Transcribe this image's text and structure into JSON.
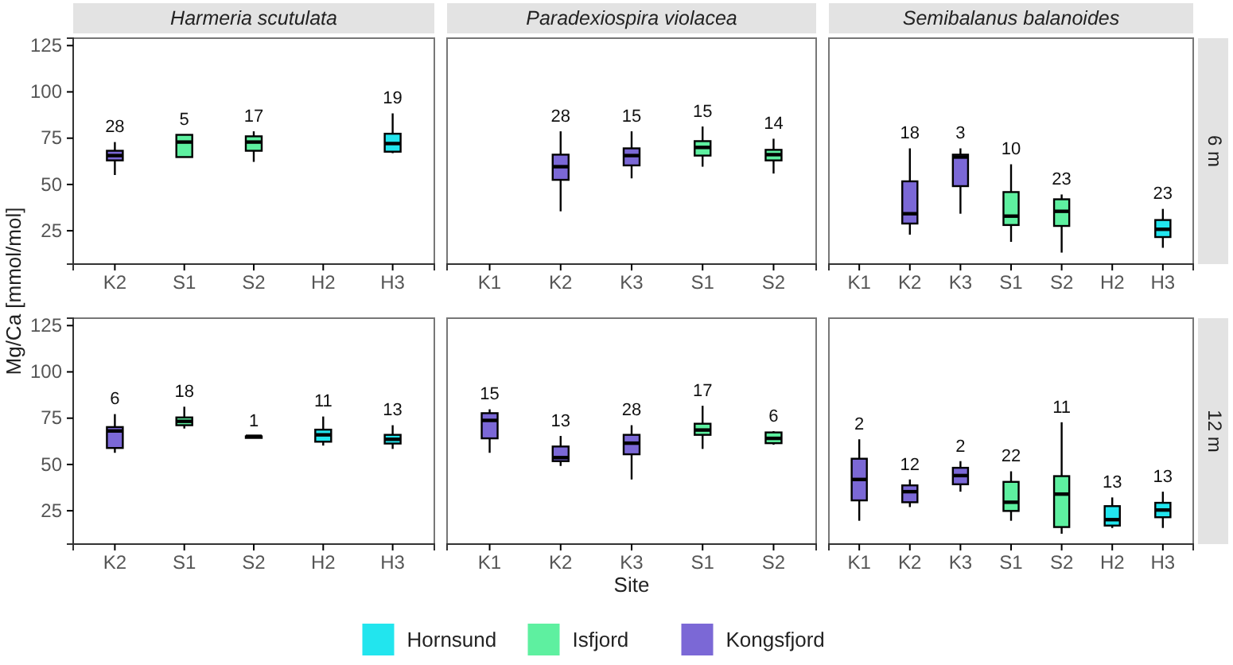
{
  "chart_data": [
    {
      "type": "box",
      "title": "Harmeria scutulata",
      "ylabel": "Mg/Ca [mmol/mol]",
      "categories": [
        "K2",
        "S1",
        "S2",
        "H2",
        "H3"
      ],
      "ylim": [
        7,
        129
      ],
      "yticks": [
        25,
        50,
        75,
        100,
        125
      ],
      "grid": false,
      "legend": "bottom",
      "series": [
        {
          "name": "Hornsund",
          "color": "#22e5ee",
          "boxes": [
            null,
            null,
            null,
            null,
            {
              "low": 66.9,
              "q1": 67.7,
              "median": 72.1,
              "q3": 77.4,
              "high": 88.4
            }
          ]
        },
        {
          "name": "Isfjord",
          "color": "#5ef0a0",
          "boxes": [
            null,
            {
              "low": 64.8,
              "q1": 64.8,
              "median": 72.9,
              "q3": 76.8,
              "high": 76.8
            },
            {
              "low": 62.2,
              "q1": 68.2,
              "median": 72.9,
              "q3": 76,
              "high": 78.7
            },
            null,
            null
          ]
        },
        {
          "name": "Kongsfjord",
          "color": "#7b68d6",
          "boxes": [
            {
              "low": 55.1,
              "q1": 63,
              "median": 65.6,
              "q3": 68.2,
              "high": 72.9
            },
            null,
            null,
            null,
            null
          ]
        }
      ],
      "annotations": [
        "28",
        "5",
        "17",
        "19"
      ]
    },
    {
      "type": "box",
      "title": "Paradexiospira violacea",
      "categories": [
        "K1",
        "K2",
        "K3",
        "S1",
        "S2"
      ],
      "ylim": [
        7,
        129
      ],
      "tick_labels": "x",
      "grid": false,
      "series": [
        {
          "color": "#5ef0a0",
          "boxes": [
            null,
            null,
            null,
            {
              "low": 59.6,
              "q1": 65.6,
              "median": 70,
              "q3": 73.4,
              "high": 81.3
            },
            {
              "low": 55.9,
              "q1": 63,
              "median": 66.1,
              "q3": 68.7,
              "high": 74.7
            }
          ]
        },
        {
          "color": "#7b68d6",
          "boxes": [
            null,
            {
              "low": 35.5,
              "q1": 52.5,
              "median": 59.6,
              "q3": 66.1,
              "high": 78.7
            },
            {
              "low": 53.3,
              "q1": 60.3,
              "median": 65.6,
              "q3": 69.5,
              "high": 78.7
            },
            null,
            null
          ]
        }
      ],
      "annotations": [
        "28",
        "15",
        "15",
        "14"
      ]
    },
    {
      "type": "box",
      "title": "Semibalanus balanoides",
      "y2label": "6 m",
      "categories": [
        "K1",
        "K2",
        "K3",
        "S1",
        "S2",
        "H2",
        "H3"
      ],
      "ylim": [
        7,
        129
      ],
      "tick_labels": "x",
      "grid": false,
      "series": [
        {
          "color": "#22e5ee",
          "boxes": [
            null,
            null,
            null,
            null,
            null,
            null,
            {
              "low": 15.8,
              "q1": 21.6,
              "median": 25.8,
              "q3": 30.8,
              "high": 36.8
            }
          ]
        },
        {
          "color": "#5ef0a0",
          "boxes": [
            null,
            null,
            null,
            {
              "low": 19,
              "q1": 28.1,
              "median": 32.9,
              "q3": 45.9,
              "high": 60.9
            },
            {
              "low": 13.2,
              "q1": 27.6,
              "median": 35.5,
              "q3": 42,
              "high": 44.6
            },
            null,
            null
          ]
        },
        {
          "color": "#7b68d6",
          "boxes": [
            null,
            {
              "low": 22.9,
              "q1": 28.9,
              "median": 34.2,
              "q3": 51.7,
              "high": 69.5
            },
            {
              "low": 34.2,
              "q1": 49.1,
              "median": 64.8,
              "q3": 66.1,
              "high": 69.5
            },
            null,
            null,
            null,
            null
          ]
        }
      ],
      "annotations": [
        "18",
        "3",
        "10",
        "23",
        "23"
      ]
    },
    {
      "type": "box",
      "categories": [
        "K2",
        "S1",
        "S2",
        "H2",
        "H3"
      ],
      "ylim": [
        7,
        129
      ],
      "yticks": [
        25,
        50,
        75,
        100,
        125
      ],
      "grid": false,
      "series": [
        {
          "color": "#22e5ee",
          "boxes": [
            null,
            null,
            null,
            {
              "low": 60.2,
              "q1": 62.3,
              "median": 66,
              "q3": 68.8,
              "high": 75.9
            },
            {
              "low": 58.4,
              "q1": 61.3,
              "median": 63.6,
              "q3": 66,
              "high": 71.2
            }
          ]
        },
        {
          "color": "#5ef0a0",
          "boxes": [
            null,
            {
              "low": 69.4,
              "q1": 71.2,
              "median": 73.3,
              "q3": 75.4,
              "high": 81.2
            },
            {
              "low": 65.2,
              "q1": 65.2,
              "median": 65.2,
              "q3": 65.2,
              "high": 65.2
            },
            null,
            null
          ]
        },
        {
          "color": "#7b68d6",
          "boxes": [
            {
              "low": 56.3,
              "q1": 58.9,
              "median": 68.1,
              "q3": 70.2,
              "high": 77.2
            },
            null,
            null,
            null,
            null
          ]
        }
      ],
      "annotations": [
        "6",
        "18",
        "1",
        "11",
        "13"
      ]
    },
    {
      "type": "box",
      "xlabel": "Site",
      "categories": [
        "K1",
        "K2",
        "K3",
        "S1",
        "S2"
      ],
      "ylim": [
        7,
        129
      ],
      "tick_labels": "x",
      "grid": false,
      "series": [
        {
          "color": "#5ef0a0",
          "boxes": [
            null,
            null,
            null,
            {
              "low": 58.4,
              "q1": 66,
              "median": 68.6,
              "q3": 72,
              "high": 81.7
            },
            {
              "low": 60.7,
              "q1": 61.5,
              "median": 64.1,
              "q3": 67.3,
              "high": 68
            }
          ]
        },
        {
          "color": "#7b68d6",
          "boxes": [
            {
              "low": 56.3,
              "q1": 64.1,
              "median": 73.8,
              "q3": 77.7,
              "high": 79.8
            },
            {
              "low": 49.2,
              "q1": 51.8,
              "median": 53.7,
              "q3": 59.7,
              "high": 65.4
            },
            {
              "low": 41.9,
              "q1": 55.5,
              "median": 61.5,
              "q3": 66,
              "high": 71.2
            },
            null,
            null
          ]
        }
      ],
      "annotations": [
        "15",
        "13",
        "28",
        "17",
        "6"
      ]
    },
    {
      "type": "box",
      "y2label": "12 m",
      "categories": [
        "K1",
        "K2",
        "K3",
        "S1",
        "S2",
        "H2",
        "H3"
      ],
      "ylim": [
        7,
        129
      ],
      "tick_labels": "x",
      "grid": false,
      "series": [
        {
          "color": "#22e5ee",
          "boxes": [
            null,
            null,
            null,
            null,
            null,
            {
              "low": 15.7,
              "q1": 17,
              "median": 20.2,
              "q3": 27.5,
              "high": 32.2
            },
            {
              "low": 15.7,
              "q1": 21.5,
              "median": 25.4,
              "q3": 29.3,
              "high": 35.3
            }
          ]
        },
        {
          "color": "#5ef0a0",
          "boxes": [
            null,
            null,
            null,
            {
              "low": 19.6,
              "q1": 24.9,
              "median": 29.6,
              "q3": 40.6,
              "high": 46.3
            },
            {
              "low": 12.6,
              "q1": 16.2,
              "median": 34,
              "q3": 43.7,
              "high": 72.8
            },
            null,
            null
          ]
        },
        {
          "color": "#7b68d6",
          "boxes": [
            {
              "low": 19.6,
              "q1": 30.6,
              "median": 41.9,
              "q3": 53.1,
              "high": 63.6
            },
            {
              "low": 27,
              "q1": 29.6,
              "median": 35.3,
              "q3": 38.7,
              "high": 41.9
            },
            {
              "low": 35.3,
              "q1": 39.3,
              "median": 44,
              "q3": 48.2,
              "high": 51.8
            },
            null,
            null,
            null,
            null
          ]
        }
      ],
      "annotations": [
        "2",
        "12",
        "2",
        "22",
        "11",
        "13",
        "13"
      ]
    }
  ]
}
